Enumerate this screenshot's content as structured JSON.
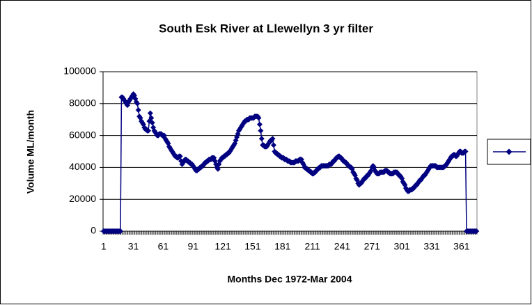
{
  "chart_data": {
    "type": "line",
    "title": "South Esk River at Llewellyn 3 yr filter",
    "x_label": "Months Dec 1972-Mar 2004",
    "y_label": "Volume ML/month",
    "categories": [
      1,
      null,
      null,
      null,
      null,
      null,
      null,
      null,
      null,
      null,
      null,
      null,
      null,
      null,
      null,
      null,
      null,
      null,
      null,
      null,
      null,
      null,
      null,
      null,
      null,
      null,
      null,
      null,
      null,
      null,
      31,
      null,
      null,
      null,
      null,
      null,
      null,
      null,
      null,
      null,
      null,
      null,
      null,
      null,
      null,
      null,
      null,
      null,
      null,
      null,
      null,
      null,
      null,
      null,
      null,
      null,
      null,
      null,
      null,
      null,
      61,
      null,
      null,
      null,
      null,
      null,
      null,
      null,
      null,
      null,
      null,
      null,
      null,
      null,
      null,
      null,
      null,
      null,
      null,
      null,
      null,
      null,
      null,
      null,
      null,
      null,
      null,
      null,
      null,
      null,
      91,
      null,
      null,
      null,
      null,
      null,
      null,
      null,
      null,
      null,
      null,
      null,
      null,
      null,
      null,
      null,
      null,
      null,
      null,
      null,
      null,
      null,
      null,
      null,
      null,
      null,
      null,
      null,
      null,
      null,
      121,
      null,
      null,
      null,
      null,
      null,
      null,
      null,
      null,
      null,
      null,
      null,
      null,
      null,
      null,
      null,
      null,
      null,
      null,
      null,
      null,
      null,
      null,
      null,
      null,
      null,
      null,
      null,
      null,
      null,
      151,
      null,
      null,
      null,
      null,
      null,
      null,
      null,
      null,
      null,
      null,
      null,
      null,
      null,
      null,
      null,
      null,
      null,
      null,
      null,
      null,
      null,
      null,
      null,
      null,
      null,
      null,
      null,
      null,
      null,
      181,
      null,
      null,
      null,
      null,
      null,
      null,
      null,
      null,
      null,
      null,
      null,
      null,
      null,
      null,
      null,
      null,
      null,
      null,
      null,
      null,
      null,
      null,
      null,
      null,
      null,
      null,
      null,
      null,
      null,
      211,
      null,
      null,
      null,
      null,
      null,
      null,
      null,
      null,
      null,
      null,
      null,
      null,
      null,
      null,
      null,
      null,
      null,
      null,
      null,
      null,
      null,
      null,
      null,
      null,
      null,
      null,
      null,
      null,
      null,
      241,
      null,
      null,
      null,
      null,
      null,
      null,
      null,
      null,
      null,
      null,
      null,
      null,
      null,
      null,
      null,
      null,
      null,
      null,
      null,
      null,
      null,
      null,
      null,
      null,
      null,
      null,
      null,
      null,
      null,
      271,
      null,
      null,
      null,
      null,
      null,
      null,
      null,
      null,
      null,
      null,
      null,
      null,
      null,
      null,
      null,
      null,
      null,
      null,
      null,
      null,
      null,
      null,
      null,
      null,
      null,
      null,
      null,
      null,
      null,
      301,
      null,
      null,
      null,
      null,
      null,
      null,
      null,
      null,
      null,
      null,
      null,
      null,
      null,
      null,
      null,
      null,
      null,
      null,
      null,
      null,
      null,
      null,
      null,
      null,
      null,
      null,
      null,
      null,
      null,
      331,
      null,
      null,
      null,
      null,
      null,
      null,
      null,
      null,
      null,
      null,
      null,
      null,
      null,
      null,
      null,
      null,
      null,
      null,
      null,
      null,
      null,
      null,
      null,
      null,
      null,
      null,
      null,
      null,
      null,
      361,
      null,
      null,
      null,
      null,
      null,
      null,
      null,
      null,
      null,
      null,
      null,
      null,
      null,
      null,
      null
    ],
    "series": [
      {
        "color": "#000080",
        "values": [
          0,
          0,
          0,
          0,
          0,
          0,
          0,
          0,
          0,
          0,
          0,
          0,
          0,
          0,
          0,
          0,
          0,
          0,
          84000,
          84000,
          83000,
          82000,
          81000,
          80000,
          79000,
          81000,
          82000,
          83000,
          84000,
          85000,
          86000,
          85000,
          83000,
          81000,
          80000,
          76000,
          72000,
          71000,
          69000,
          68000,
          67000,
          65000,
          64000,
          64000,
          63000,
          63000,
          69000,
          74000,
          71000,
          68000,
          65000,
          63000,
          62000,
          61000,
          60000,
          60000,
          61000,
          61000,
          61000,
          60000,
          60000,
          60000,
          58000,
          57000,
          56000,
          55000,
          53000,
          52000,
          51000,
          50000,
          49000,
          48000,
          47000,
          47000,
          46000,
          46000,
          47000,
          47000,
          44000,
          42000,
          43000,
          44000,
          45000,
          45000,
          44000,
          44000,
          43000,
          43000,
          42000,
          42000,
          41000,
          40000,
          39000,
          38000,
          38000,
          39000,
          39000,
          40000,
          40000,
          41000,
          41000,
          42000,
          43000,
          43000,
          44000,
          44000,
          45000,
          45000,
          45000,
          46000,
          46000,
          46000,
          44000,
          42000,
          40000,
          39000,
          42000,
          44000,
          45000,
          46000,
          46000,
          47000,
          47000,
          48000,
          48000,
          49000,
          49000,
          50000,
          51000,
          52000,
          53000,
          54000,
          55000,
          57000,
          59000,
          61000,
          63000,
          64000,
          65000,
          66000,
          67000,
          68000,
          69000,
          69000,
          70000,
          70000,
          70000,
          71000,
          71000,
          71000,
          71000,
          71000,
          72000,
          72000,
          72000,
          72000,
          71000,
          67000,
          63000,
          58000,
          54000,
          54000,
          53000,
          53000,
          53000,
          54000,
          55000,
          56000,
          57000,
          57000,
          58000,
          54000,
          50000,
          49000,
          49000,
          48000,
          48000,
          47000,
          47000,
          46000,
          46000,
          46000,
          45000,
          45000,
          45000,
          44000,
          44000,
          44000,
          43000,
          43000,
          43000,
          43000,
          43000,
          44000,
          44000,
          44000,
          44000,
          45000,
          45000,
          45000,
          43000,
          42000,
          40000,
          40000,
          39000,
          39000,
          38000,
          38000,
          37000,
          37000,
          36000,
          36000,
          37000,
          37000,
          38000,
          39000,
          39000,
          40000,
          40000,
          41000,
          41000,
          41000,
          41000,
          41000,
          41000,
          41000,
          41000,
          42000,
          42000,
          42000,
          43000,
          44000,
          44000,
          45000,
          46000,
          46000,
          47000,
          47000,
          46000,
          46000,
          45000,
          44000,
          44000,
          43000,
          43000,
          42000,
          41000,
          41000,
          40000,
          40000,
          39000,
          37000,
          36000,
          35000,
          33000,
          32000,
          30000,
          29000,
          30000,
          30000,
          31000,
          32000,
          33000,
          33000,
          34000,
          35000,
          35000,
          36000,
          37000,
          38000,
          40000,
          41000,
          40000,
          38000,
          37000,
          36000,
          36000,
          36000,
          37000,
          37000,
          37000,
          37000,
          37000,
          38000,
          38000,
          38000,
          37000,
          37000,
          36000,
          36000,
          36000,
          36000,
          37000,
          37000,
          37000,
          37000,
          36000,
          35000,
          35000,
          34000,
          33000,
          31000,
          30000,
          29000,
          27000,
          26000,
          25000,
          25000,
          26000,
          26000,
          26000,
          27000,
          27000,
          28000,
          29000,
          29000,
          30000,
          31000,
          32000,
          32000,
          33000,
          34000,
          35000,
          35000,
          36000,
          37000,
          38000,
          39000,
          40000,
          41000,
          41000,
          41000,
          41000,
          41000,
          41000,
          40000,
          40000,
          40000,
          40000,
          40000,
          40000,
          40000,
          40000,
          41000,
          41000,
          42000,
          43000,
          44000,
          45000,
          46000,
          47000,
          47000,
          48000,
          48000,
          47000,
          47000,
          48000,
          49000,
          50000,
          50000,
          49000,
          49000,
          49000,
          50000,
          50000,
          0,
          0,
          0,
          0,
          0,
          0,
          0,
          0,
          0,
          0,
          0
        ]
      }
    ],
    "ylim": [
      0,
      100000
    ],
    "yticks": [
      0,
      20000,
      40000,
      60000,
      80000,
      100000
    ],
    "grid": true,
    "legend": "right"
  }
}
